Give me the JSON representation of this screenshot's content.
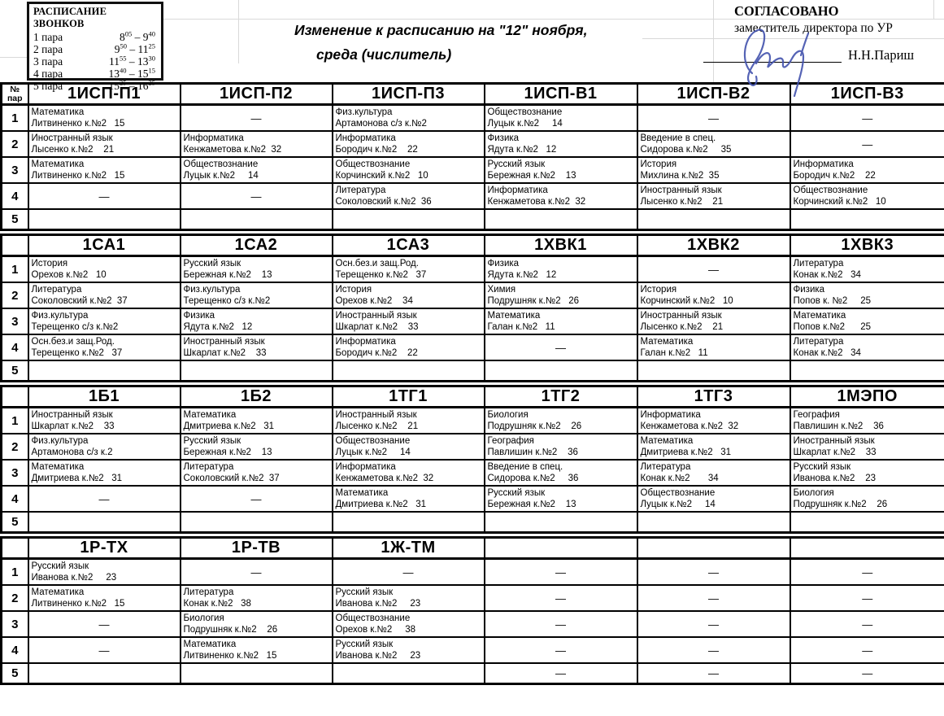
{
  "bell_schedule": {
    "title": "РАСПИСАНИЕ ЗВОНКОВ",
    "rows": [
      {
        "label": "1 пара",
        "t": [
          "8",
          "05",
          "9",
          "40"
        ]
      },
      {
        "label": "2 пара",
        "t": [
          "9",
          "50",
          "11",
          "25"
        ]
      },
      {
        "label": "3 пара",
        "t": [
          "11",
          "55",
          "13",
          "30"
        ]
      },
      {
        "label": "4 пара",
        "t": [
          "13",
          "40",
          "15",
          "15"
        ]
      },
      {
        "label": "5 пара",
        "t": [
          "15",
          "25",
          "16",
          "25"
        ]
      }
    ]
  },
  "header": {
    "title_line1": "Изменение к расписанию на \"12\" ноября,",
    "title_line2": "среда (числитель)",
    "approved": "СОГЛАСОВАНО",
    "approved_role": "заместитель директора по УР",
    "approved_name": "Н.Н.Париш"
  },
  "num_header": {
    "line1": "№",
    "line2": "пар"
  },
  "colors": {
    "border": "#000000",
    "gridline": "#d9d9d9",
    "signature": "#4353ad"
  },
  "blocks": [
    {
      "groups": [
        "1ИСП-П1",
        "1ИСП-П2",
        "1ИСП-П3",
        "1ИСП-В1",
        "1ИСП-В2",
        "1ИСП-В3"
      ],
      "rows": [
        {
          "num": "1",
          "cells": [
            {
              "s": "Математика",
              "t": "Литвиненко к.№2   15"
            },
            "dash",
            {
              "s": "Физ.культура",
              "t": "Артамонова с/з к.№2"
            },
            {
              "s": "Обществознание",
              "t": "Луцык к.№2     14"
            },
            "dash",
            "dash"
          ]
        },
        {
          "num": "2",
          "cells": [
            {
              "s": "Иностранный язык",
              "t": "Лысенко к.№2    21"
            },
            {
              "s": "Информатика",
              "t": "Кенжаметова к.№2  32"
            },
            {
              "s": "Информатика",
              "t": "Бородич к.№2    22"
            },
            {
              "s": "Физика",
              "t": "Ядута к.№2   12"
            },
            {
              "s": "Введение в спец.",
              "t": "Сидорова к.№2     35"
            },
            "dash"
          ]
        },
        {
          "num": "3",
          "cells": [
            {
              "s": "Математика",
              "t": "Литвиненко к.№2   15"
            },
            {
              "s": "Обществознание",
              "t": "Луцык к.№2     14"
            },
            {
              "s": "Обществознание",
              "t": "Корчинский к.№2   10"
            },
            {
              "s": "Русский язык",
              "t": "Бережная к.№2    13"
            },
            {
              "s": "История",
              "t": "Михлина к.№2  35"
            },
            {
              "s": "Информатика",
              "t": "Бородич к.№2    22"
            }
          ]
        },
        {
          "num": "4",
          "cells": [
            "dash",
            "dash",
            {
              "s": "Литература",
              "t": "Соколовский к.№2  36"
            },
            {
              "s": "Информатика",
              "t": "Кенжаметова к.№2  32"
            },
            {
              "s": "Иностранный язык",
              "t": "Лысенко к.№2    21"
            },
            {
              "s": "Обществознание",
              "t": "Корчинский к.№2   10"
            }
          ]
        },
        {
          "num": "5",
          "cells": [
            null,
            null,
            null,
            null,
            null,
            null
          ]
        }
      ]
    },
    {
      "groups": [
        "1СА1",
        "1СА2",
        "1СА3",
        "1ХВК1",
        "1ХВК2",
        "1ХВК3"
      ],
      "rows": [
        {
          "num": "1",
          "cells": [
            {
              "s": "История",
              "t": "Орехов к.№2   10"
            },
            {
              "s": "Русский язык",
              "t": "Бережная к.№2    13"
            },
            {
              "s": "Осн.без.и защ.Род.",
              "t": "Терещенко к.№2   37"
            },
            {
              "s": "Физика",
              "t": "Ядута к.№2   12"
            },
            "dash",
            {
              "s": "Литература",
              "t": "Конак к.№2   34"
            }
          ]
        },
        {
          "num": "2",
          "cells": [
            {
              "s": "Литература",
              "t": "Соколовский к.№2  37"
            },
            {
              "s": "Физ.культура",
              "t": "Терещенко с/з к.№2"
            },
            {
              "s": "История",
              "t": "Орехов к.№2    34"
            },
            {
              "s": "Химия",
              "t": "Подрушняк к.№2   26"
            },
            {
              "s": "История",
              "t": "Корчинский к.№2   10"
            },
            {
              "s": "Физика",
              "t": "Попов к. №2     25"
            }
          ]
        },
        {
          "num": "3",
          "cells": [
            {
              "s": "Физ.культура",
              "t": "Терещенко с/з к.№2"
            },
            {
              "s": "Физика",
              "t": "Ядута к.№2   12"
            },
            {
              "s": "Иностранный язык",
              "t": "Шкарлат к.№2    33"
            },
            {
              "s": "Математика",
              "t": "Галан к.№2   11"
            },
            {
              "s": "Иностранный язык",
              "t": "Лысенко к.№2    21"
            },
            {
              "s": "Математика",
              "t": "Попов к.№2      25"
            }
          ]
        },
        {
          "num": "4",
          "cells": [
            {
              "s": "Осн.без.и защ.Род.",
              "t": "Терещенко к.№2   37"
            },
            {
              "s": "Иностранный язык",
              "t": "Шкарлат к.№2    33"
            },
            {
              "s": "Информатика",
              "t": "Бородич к.№2    22"
            },
            "dash",
            {
              "s": "Математика",
              "t": "Галан к.№2   11"
            },
            {
              "s": "Литература",
              "t": "Конак к.№2   34"
            }
          ]
        },
        {
          "num": "5",
          "cells": [
            null,
            null,
            null,
            null,
            null,
            null
          ]
        }
      ]
    },
    {
      "groups": [
        "1Б1",
        "1Б2",
        "1ТГ1",
        "1ТГ2",
        "1ТГ3",
        "1МЭПО"
      ],
      "rows": [
        {
          "num": "1",
          "cells": [
            {
              "s": "Иностранный язык",
              "t": "Шкарлат к.№2    33"
            },
            {
              "s": "Математика",
              "t": "Дмитриева к.№2   31"
            },
            {
              "s": "Иностранный язык",
              "t": "Лысенко к.№2    21"
            },
            {
              "s": "Биология",
              "t": "Подрушняк к.№2    26"
            },
            {
              "s": "Информатика",
              "t": "Кенжаметова к.№2  32"
            },
            {
              "s": "География",
              "t": "Павлишин к.№2    36"
            }
          ]
        },
        {
          "num": "2",
          "cells": [
            {
              "s": "Физ.культура",
              "t": "Артамонова с/з к.2"
            },
            {
              "s": "Русский язык",
              "t": "Бережная к.№2    13"
            },
            {
              "s": "Обществознание",
              "t": "Луцык к.№2     14"
            },
            {
              "s": "География",
              "t": "Павлишин к.№2    36"
            },
            {
              "s": "Математика",
              "t": "Дмитриева к.№2   31"
            },
            {
              "s": "Иностранный язык",
              "t": "Шкарлат к.№2    33"
            }
          ]
        },
        {
          "num": "3",
          "cells": [
            {
              "s": "Математика",
              "t": "Дмитриева к.№2   31"
            },
            {
              "s": "Литература",
              "t": "Соколовский к.№2  37"
            },
            {
              "s": "Информатика",
              "t": "Кенжаметова к.№2  32"
            },
            {
              "s": "Введение в спец.",
              "t": "Сидорова к.№2     36"
            },
            {
              "s": "Литература",
              "t": "Конак к.№2       34"
            },
            {
              "s": "Русский язык",
              "t": "Иванова к.№2    23"
            }
          ]
        },
        {
          "num": "4",
          "cells": [
            "dash",
            "dash",
            {
              "s": "Математика",
              "t": "Дмитриева к.№2   31"
            },
            {
              "s": "Русский язык",
              "t": "Бережная к.№2    13"
            },
            {
              "s": "Обществознание",
              "t": "Луцык к.№2     14"
            },
            {
              "s": "Биология",
              "t": "Подрушняк к.№2    26"
            }
          ]
        },
        {
          "num": "5",
          "cells": [
            null,
            null,
            null,
            null,
            null,
            null
          ]
        }
      ]
    },
    {
      "groups": [
        "1Р-ТХ",
        "1Р-ТВ",
        "1Ж-ТМ",
        "",
        "",
        ""
      ],
      "rows": [
        {
          "num": "1",
          "cells": [
            {
              "s": "Русский язык",
              "t": "Иванова к.№2     23"
            },
            "dash",
            "dash",
            "dash",
            "dash",
            "dash"
          ]
        },
        {
          "num": "2",
          "cells": [
            {
              "s": "Математика",
              "t": "Литвиненко к.№2   15"
            },
            {
              "s": "Литература",
              "t": "Конак к.№2   38"
            },
            {
              "s": "Русский язык",
              "t": "Иванова к.№2     23"
            },
            "dash",
            "dash",
            "dash"
          ]
        },
        {
          "num": "3",
          "cells": [
            "dash",
            {
              "s": "Биология",
              "t": "Подрушняк к.№2    26"
            },
            {
              "s": "Обществознание",
              "t": "Орехов к.№2     38"
            },
            "dash",
            "dash",
            "dash"
          ]
        },
        {
          "num": "4",
          "cells": [
            "dash",
            {
              "s": "Математика",
              "t": "Литвиненко к.№2   15"
            },
            {
              "s": "Русский язык",
              "t": "Иванова к.№2     23"
            },
            "dash",
            "dash",
            "dash"
          ]
        },
        {
          "num": "5",
          "cells": [
            null,
            null,
            null,
            "dash",
            "dash",
            "dash"
          ]
        }
      ]
    }
  ]
}
